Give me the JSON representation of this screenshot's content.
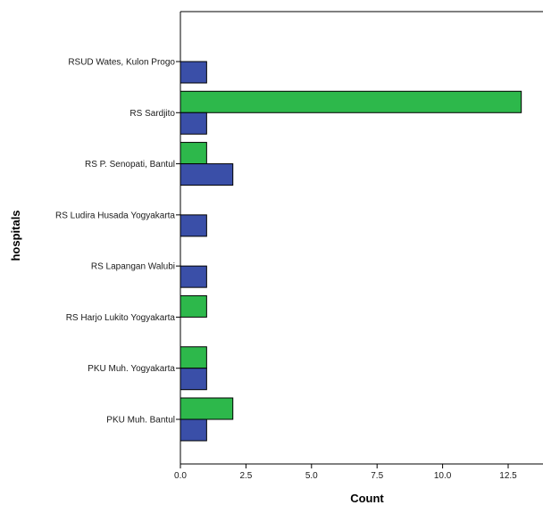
{
  "chart_data": {
    "type": "bar",
    "orientation": "horizontal",
    "title": "",
    "xlabel": "Count",
    "ylabel": "hospitals",
    "xlim": [
      0,
      14.5
    ],
    "x_ticks": [
      "0.0",
      "2.5",
      "5.0",
      "7.5",
      "10.0",
      "12.5"
    ],
    "x_tick_values": [
      0,
      2.5,
      5,
      7.5,
      10,
      12.5
    ],
    "grid": false,
    "legend": "none",
    "categories": [
      "RSUD Wates, Kulon Progo",
      "RS Sardjito",
      "RS P. Senopati, Bantul",
      "RS Ludira Husada Yogyakarta",
      "RS Lapangan Walubi",
      "RS Harjo Lukito Yogyakarta",
      "PKU Muh. Yogyakarta",
      "PKU Muh. Bantul"
    ],
    "series": [
      {
        "color": "#3a4fa8",
        "values": [
          1,
          1,
          2,
          1,
          1,
          0,
          1,
          1
        ]
      },
      {
        "color": "#2db84b",
        "values": [
          0,
          13,
          1,
          0,
          0,
          1,
          1,
          2
        ]
      }
    ]
  }
}
